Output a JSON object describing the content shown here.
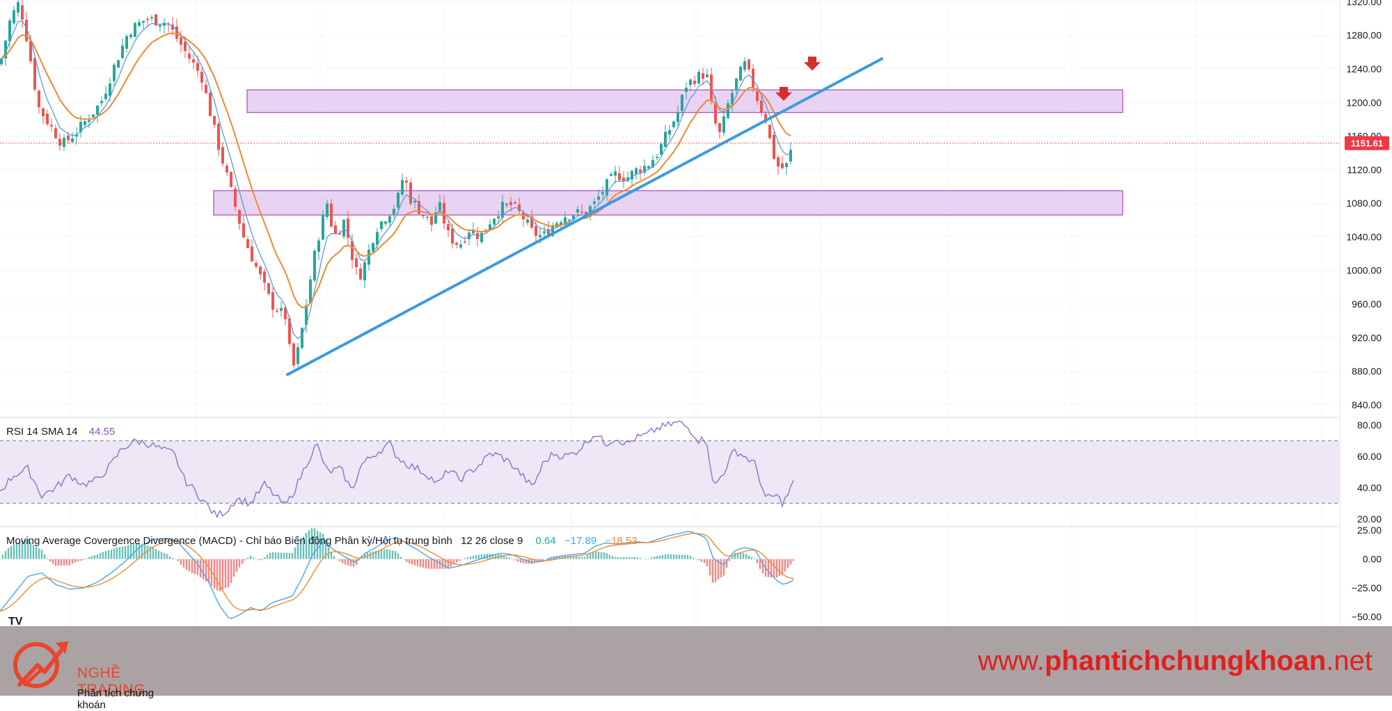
{
  "colors": {
    "bull": "#26a69a",
    "bear": "#ef5350",
    "ema_fast": "#5b9bd5",
    "ema_slow": "#f0892e",
    "trendline": "#3b9be0",
    "zone_fill": "#e3c8f0",
    "zone_stroke": "#9c27b0",
    "rsi_line": "#8a73c9",
    "rsi_band": "#ede7f6",
    "macd_line": "#42a5f5",
    "signal_line": "#f0892e",
    "arrow": "#d32f2f",
    "last_price_bg": "#f23645"
  },
  "chart_data": [
    {
      "type": "candlestick",
      "title": "",
      "y_ticks": [
        "1320.00",
        "1280.00",
        "1240.00",
        "1200.00",
        "1160.00",
        "1120.00",
        "1080.00",
        "1040.00",
        "1000.00",
        "960.00",
        "920.00",
        "880.00",
        "840.00"
      ],
      "ylim": [
        825,
        1322
      ],
      "last_price": "1151.61",
      "price_anchors": [
        [
          0,
          1245
        ],
        [
          15,
          1300
        ],
        [
          28,
          1320
        ],
        [
          40,
          1270
        ],
        [
          55,
          1195
        ],
        [
          70,
          1175
        ],
        [
          90,
          1150
        ],
        [
          110,
          1165
        ],
        [
          130,
          1185
        ],
        [
          145,
          1200
        ],
        [
          165,
          1245
        ],
        [
          185,
          1285
        ],
        [
          210,
          1300
        ],
        [
          240,
          1295
        ],
        [
          265,
          1262
        ],
        [
          290,
          1230
        ],
        [
          310,
          1160
        ],
        [
          330,
          1100
        ],
        [
          350,
          1040
        ],
        [
          370,
          1000
        ],
        [
          390,
          960
        ],
        [
          410,
          945
        ],
        [
          420,
          880
        ],
        [
          430,
          910
        ],
        [
          440,
          960
        ],
        [
          450,
          1010
        ],
        [
          460,
          1050
        ],
        [
          470,
          1080
        ],
        [
          480,
          1040
        ],
        [
          495,
          1060
        ],
        [
          505,
          1020
        ],
        [
          515,
          990
        ],
        [
          525,
          1010
        ],
        [
          540,
          1050
        ],
        [
          555,
          1065
        ],
        [
          570,
          1080
        ],
        [
          580,
          1115
        ],
        [
          590,
          1085
        ],
        [
          605,
          1070
        ],
        [
          620,
          1055
        ],
        [
          630,
          1080
        ],
        [
          645,
          1040
        ],
        [
          660,
          1030
        ],
        [
          675,
          1050
        ],
        [
          690,
          1040
        ],
        [
          705,
          1060
        ],
        [
          720,
          1075
        ],
        [
          735,
          1078
        ],
        [
          750,
          1065
        ],
        [
          765,
          1045
        ],
        [
          780,
          1040
        ],
        [
          795,
          1055
        ],
        [
          810,
          1065
        ],
        [
          825,
          1068
        ],
        [
          840,
          1068
        ],
        [
          855,
          1080
        ],
        [
          870,
          1100
        ],
        [
          885,
          1115
        ],
        [
          900,
          1110
        ],
        [
          915,
          1120
        ],
        [
          930,
          1125
        ],
        [
          945,
          1140
        ],
        [
          960,
          1165
        ],
        [
          975,
          1190
        ],
        [
          985,
          1220
        ],
        [
          1000,
          1230
        ],
        [
          1015,
          1235
        ],
        [
          1025,
          1180
        ],
        [
          1035,
          1160
        ],
        [
          1045,
          1195
        ],
        [
          1060,
          1230
        ],
        [
          1070,
          1245
        ],
        [
          1080,
          1225
        ],
        [
          1090,
          1200
        ],
        [
          1100,
          1180
        ],
        [
          1110,
          1140
        ],
        [
          1120,
          1120
        ],
        [
          1130,
          1125
        ],
        [
          1140,
          1151.61
        ]
      ],
      "zones": [
        [
          1188,
          1215
        ],
        [
          1066,
          1095
        ]
      ],
      "trendline": [
        [
          413,
          876
        ],
        [
          1267,
          1252
        ]
      ],
      "arrows": [
        [
          1126,
          1207
        ],
        [
          1167,
          1243
        ]
      ]
    },
    {
      "type": "line",
      "label": "RSI 14 SMA 14",
      "value": "44.55",
      "y_ticks": [
        "80.00",
        "60.00",
        "40.00",
        "20.00"
      ],
      "ylim": [
        15,
        85
      ],
      "band": [
        30,
        70
      ],
      "anchors": [
        [
          0,
          38
        ],
        [
          20,
          48
        ],
        [
          40,
          52
        ],
        [
          60,
          35
        ],
        [
          80,
          40
        ],
        [
          100,
          48
        ],
        [
          120,
          42
        ],
        [
          140,
          45
        ],
        [
          160,
          55
        ],
        [
          175,
          65
        ],
        [
          195,
          70
        ],
        [
          215,
          68
        ],
        [
          235,
          64
        ],
        [
          250,
          62
        ],
        [
          265,
          45
        ],
        [
          280,
          38
        ],
        [
          295,
          30
        ],
        [
          310,
          22
        ],
        [
          325,
          25
        ],
        [
          340,
          33
        ],
        [
          360,
          30
        ],
        [
          380,
          42
        ],
        [
          395,
          35
        ],
        [
          410,
          28
        ],
        [
          425,
          40
        ],
        [
          440,
          55
        ],
        [
          455,
          68
        ],
        [
          470,
          50
        ],
        [
          490,
          52
        ],
        [
          505,
          38
        ],
        [
          520,
          55
        ],
        [
          540,
          62
        ],
        [
          560,
          68
        ],
        [
          570,
          60
        ],
        [
          585,
          55
        ],
        [
          600,
          52
        ],
        [
          615,
          48
        ],
        [
          630,
          42
        ],
        [
          645,
          52
        ],
        [
          660,
          45
        ],
        [
          675,
          50
        ],
        [
          690,
          55
        ],
        [
          705,
          62
        ],
        [
          720,
          60
        ],
        [
          735,
          55
        ],
        [
          750,
          48
        ],
        [
          765,
          40
        ],
        [
          780,
          55
        ],
        [
          795,
          62
        ],
        [
          810,
          60
        ],
        [
          825,
          62
        ],
        [
          840,
          68
        ],
        [
          855,
          75
        ],
        [
          870,
          68
        ],
        [
          885,
          72
        ],
        [
          900,
          68
        ],
        [
          915,
          72
        ],
        [
          930,
          74
        ],
        [
          945,
          78
        ],
        [
          960,
          80
        ],
        [
          975,
          82
        ],
        [
          990,
          78
        ],
        [
          1005,
          70
        ],
        [
          1015,
          72
        ],
        [
          1025,
          40
        ],
        [
          1040,
          50
        ],
        [
          1055,
          64
        ],
        [
          1070,
          60
        ],
        [
          1085,
          55
        ],
        [
          1100,
          33
        ],
        [
          1115,
          35
        ],
        [
          1125,
          30
        ],
        [
          1135,
          38
        ],
        [
          1140,
          44.55
        ]
      ]
    },
    {
      "type": "line",
      "label": "Moving Average Covergence Divergence (MACD) - Chỉ báo Biến động Phân kỳ/Hội tụ trung bình",
      "params": "12 26 close 9",
      "values": [
        "0.64",
        "−17.89",
        "−18.53"
      ],
      "y_ticks": [
        "25.00",
        "0.00",
        "−25.00",
        "−50.00"
      ],
      "ylim": [
        -58,
        28
      ],
      "macd_anchors": [
        [
          0,
          -45
        ],
        [
          20,
          -30
        ],
        [
          40,
          -15
        ],
        [
          60,
          -12
        ],
        [
          80,
          -22
        ],
        [
          100,
          -26
        ],
        [
          120,
          -25
        ],
        [
          140,
          -20
        ],
        [
          160,
          -12
        ],
        [
          180,
          -2
        ],
        [
          200,
          10
        ],
        [
          220,
          17
        ],
        [
          240,
          18
        ],
        [
          255,
          15
        ],
        [
          270,
          5
        ],
        [
          285,
          -5
        ],
        [
          300,
          -20
        ],
        [
          315,
          -40
        ],
        [
          330,
          -52
        ],
        [
          345,
          -48
        ],
        [
          360,
          -42
        ],
        [
          375,
          -45
        ],
        [
          390,
          -38
        ],
        [
          405,
          -35
        ],
        [
          420,
          -32
        ],
        [
          435,
          -15
        ],
        [
          450,
          5
        ],
        [
          465,
          15
        ],
        [
          480,
          8
        ],
        [
          495,
          2
        ],
        [
          510,
          -3
        ],
        [
          525,
          5
        ],
        [
          540,
          10
        ],
        [
          555,
          16
        ],
        [
          570,
          19
        ],
        [
          585,
          13
        ],
        [
          600,
          8
        ],
        [
          615,
          2
        ],
        [
          630,
          -3
        ],
        [
          645,
          -8
        ],
        [
          660,
          -6
        ],
        [
          675,
          -3
        ],
        [
          690,
          0
        ],
        [
          705,
          3
        ],
        [
          720,
          5
        ],
        [
          735,
          4
        ],
        [
          750,
          0
        ],
        [
          765,
          -3
        ],
        [
          780,
          -2
        ],
        [
          795,
          1
        ],
        [
          810,
          3
        ],
        [
          825,
          4
        ],
        [
          840,
          5
        ],
        [
          855,
          11
        ],
        [
          870,
          14
        ],
        [
          885,
          13
        ],
        [
          900,
          14
        ],
        [
          915,
          15
        ],
        [
          930,
          14
        ],
        [
          945,
          17
        ],
        [
          960,
          20
        ],
        [
          975,
          22
        ],
        [
          990,
          24
        ],
        [
          1005,
          21
        ],
        [
          1015,
          18
        ],
        [
          1025,
          0
        ],
        [
          1040,
          -5
        ],
        [
          1055,
          7
        ],
        [
          1070,
          10
        ],
        [
          1085,
          8
        ],
        [
          1100,
          -8
        ],
        [
          1115,
          -18
        ],
        [
          1125,
          -22
        ],
        [
          1135,
          -20
        ],
        [
          1140,
          -17.89
        ]
      ],
      "signal_lag": 9
    }
  ],
  "footer": {
    "brand_name": "NGHỀ TRADING",
    "brand_tagline": "Phân tích chứng khoán",
    "url_prefix": "www.",
    "url_domain": "phantichchungkhoan",
    "url_suffix": ".net",
    "watermark_icon": "tradingview-logo-icon",
    "logo_icon": "trading-trend-arrow-logo-icon"
  }
}
